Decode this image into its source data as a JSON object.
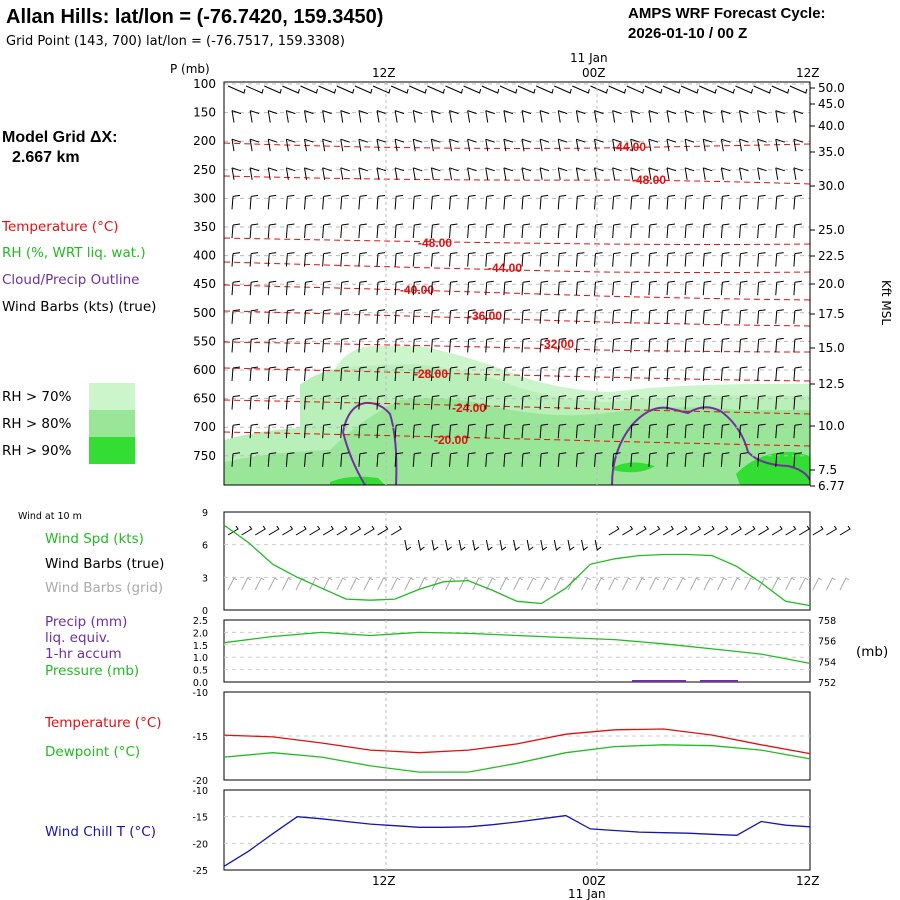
{
  "header": {
    "title": "Allan Hills:  lat/lon = (-76.7420, 159.3450)",
    "subtitle": "Grid Point (143, 700) lat/lon = (-76.7517, 159.3308)",
    "cycle_label": "AMPS WRF Forecast Cycle:",
    "cycle_value": "2026-01-10 / 00  Z"
  },
  "model_grid": {
    "label": "Model Grid ΔX:",
    "value": "2.667 km"
  },
  "colors": {
    "temperature": "#e01010",
    "rh": "#22bb22",
    "cloud": "#7030a0",
    "wind": "#000000",
    "wind_grid": "#aaaaaa",
    "wind_chill": "#1515b0",
    "rh70": "#ccf5cc",
    "rh80": "#99e699",
    "rh90": "#33dd33"
  },
  "legend": {
    "temperature": "Temperature (°C)",
    "rh": "RH (%, WRT liq. wat.)",
    "cloud": "Cloud/Precip Outline",
    "wind_barbs": "Wind Barbs (kts) (true)",
    "rh_levels": [
      "RH > 70%",
      "RH > 80%",
      "RH > 90%"
    ]
  },
  "time_axis": {
    "ticks": [
      "12Z",
      "00Z",
      "12Z"
    ],
    "date_label": "11 Jan"
  },
  "chart_data": [
    {
      "type": "heatmap",
      "title": "Time-height cross section",
      "ylabel": "P (mb)",
      "y2label": "Kft MSL",
      "pressure_ticks": [
        "100",
        "150",
        "200",
        "250",
        "300",
        "350",
        "400",
        "450",
        "500",
        "550",
        "600",
        "650",
        "700",
        "750"
      ],
      "height_ticks": [
        "50.0",
        "45.0",
        "40.0",
        "35.0",
        "30.0",
        "25.0",
        "22.5",
        "20.0",
        "17.5",
        "15.0",
        "12.5",
        "10.0",
        "7.5",
        "6.77"
      ],
      "isotherm_labels": [
        "-44.00",
        "-48.00",
        "-48.00",
        "-44.00",
        "-40.00",
        "-36.00",
        "-32.00",
        "-28.00",
        "-24.00",
        "-20.00"
      ]
    },
    {
      "type": "line",
      "panel_label": "Wind at 10 m",
      "legend": [
        "Wind Spd (kts)",
        "Wind Barbs (true)",
        "Wind Barbs (grid)"
      ],
      "y_ticks": [
        "9",
        "6",
        "3",
        "0"
      ],
      "ylim": [
        0,
        9
      ],
      "x_hours": [
        0,
        2,
        4,
        6,
        8,
        10,
        12,
        14,
        16,
        18,
        20,
        22,
        24,
        26,
        28,
        30,
        32,
        34,
        36,
        38,
        40,
        42,
        44,
        46,
        48
      ],
      "series": [
        {
          "name": "Wind Spd (kts)",
          "values": [
            7.8,
            6.2,
            4.2,
            3.0,
            2.0,
            1.0,
            0.9,
            1.0,
            1.9,
            2.6,
            2.7,
            1.8,
            0.8,
            0.6,
            2.0,
            4.2,
            4.7,
            5.0,
            5.1,
            5.1,
            5.0,
            4.0,
            2.5,
            0.8,
            0.4
          ]
        }
      ]
    },
    {
      "type": "line",
      "legend": [
        "Precip (mm)",
        "liq. equiv.",
        "1-hr accum",
        "Pressure (mb)"
      ],
      "y_ticks": [
        "2.5",
        "2.0",
        "1.5",
        "1.0",
        "0.5",
        "0.0"
      ],
      "y2_ticks": [
        "758",
        "756",
        "754",
        "752"
      ],
      "y2_unit": "(mb)",
      "ylim": [
        0,
        2.5
      ],
      "y2lim": [
        752,
        758
      ],
      "x_hours": [
        0,
        4,
        8,
        12,
        16,
        20,
        24,
        28,
        32,
        36,
        40,
        44,
        48
      ],
      "series": [
        {
          "name": "Pressure (mb)",
          "values": [
            755.8,
            756.4,
            756.8,
            756.5,
            756.8,
            756.7,
            756.5,
            756.3,
            756.1,
            755.7,
            755.2,
            754.7,
            753.8
          ]
        },
        {
          "name": "Precip (mm)",
          "values": [
            0,
            0,
            0,
            0,
            0,
            0,
            0,
            0,
            0,
            0,
            0,
            0,
            0
          ]
        }
      ]
    },
    {
      "type": "line",
      "legend": [
        "Temperature (°C)",
        "Dewpoint (°C)"
      ],
      "y_ticks": [
        "-10",
        "-15",
        "-20"
      ],
      "ylim": [
        -20,
        -10
      ],
      "x_hours": [
        0,
        4,
        8,
        12,
        16,
        20,
        24,
        28,
        32,
        36,
        40,
        44,
        48
      ],
      "series": [
        {
          "name": "Temperature (°C)",
          "values": [
            -14.9,
            -15.1,
            -15.8,
            -16.6,
            -16.9,
            -16.6,
            -15.9,
            -14.8,
            -14.3,
            -14.2,
            -14.9,
            -16.0,
            -17.0
          ]
        },
        {
          "name": "Dewpoint (°C)",
          "values": [
            -17.4,
            -16.9,
            -17.4,
            -18.4,
            -19.1,
            -19.1,
            -18.1,
            -16.9,
            -16.2,
            -16.0,
            -16.1,
            -16.6,
            -17.6
          ]
        }
      ]
    },
    {
      "type": "line",
      "legend": [
        "Wind Chill T (°C)"
      ],
      "y_ticks": [
        "-10",
        "-15",
        "-20",
        "-25"
      ],
      "ylim": [
        -25,
        -10
      ],
      "x_hours": [
        0,
        2,
        4,
        6,
        8,
        10,
        12,
        14,
        16,
        18,
        20,
        22,
        24,
        26,
        28,
        30,
        32,
        34,
        36,
        38,
        40,
        42,
        44,
        46,
        48
      ],
      "series": [
        {
          "name": "Wind Chill T (°C)",
          "values": [
            -24.3,
            -21.5,
            -18.2,
            -15.0,
            -15.4,
            -15.9,
            -16.4,
            -16.7,
            -17.0,
            -17.0,
            -16.9,
            -16.5,
            -16.0,
            -15.4,
            -14.8,
            -17.3,
            -17.6,
            -17.9,
            -18.0,
            -18.1,
            -18.3,
            -18.5,
            -15.9,
            -16.6,
            -16.9
          ]
        }
      ]
    }
  ]
}
